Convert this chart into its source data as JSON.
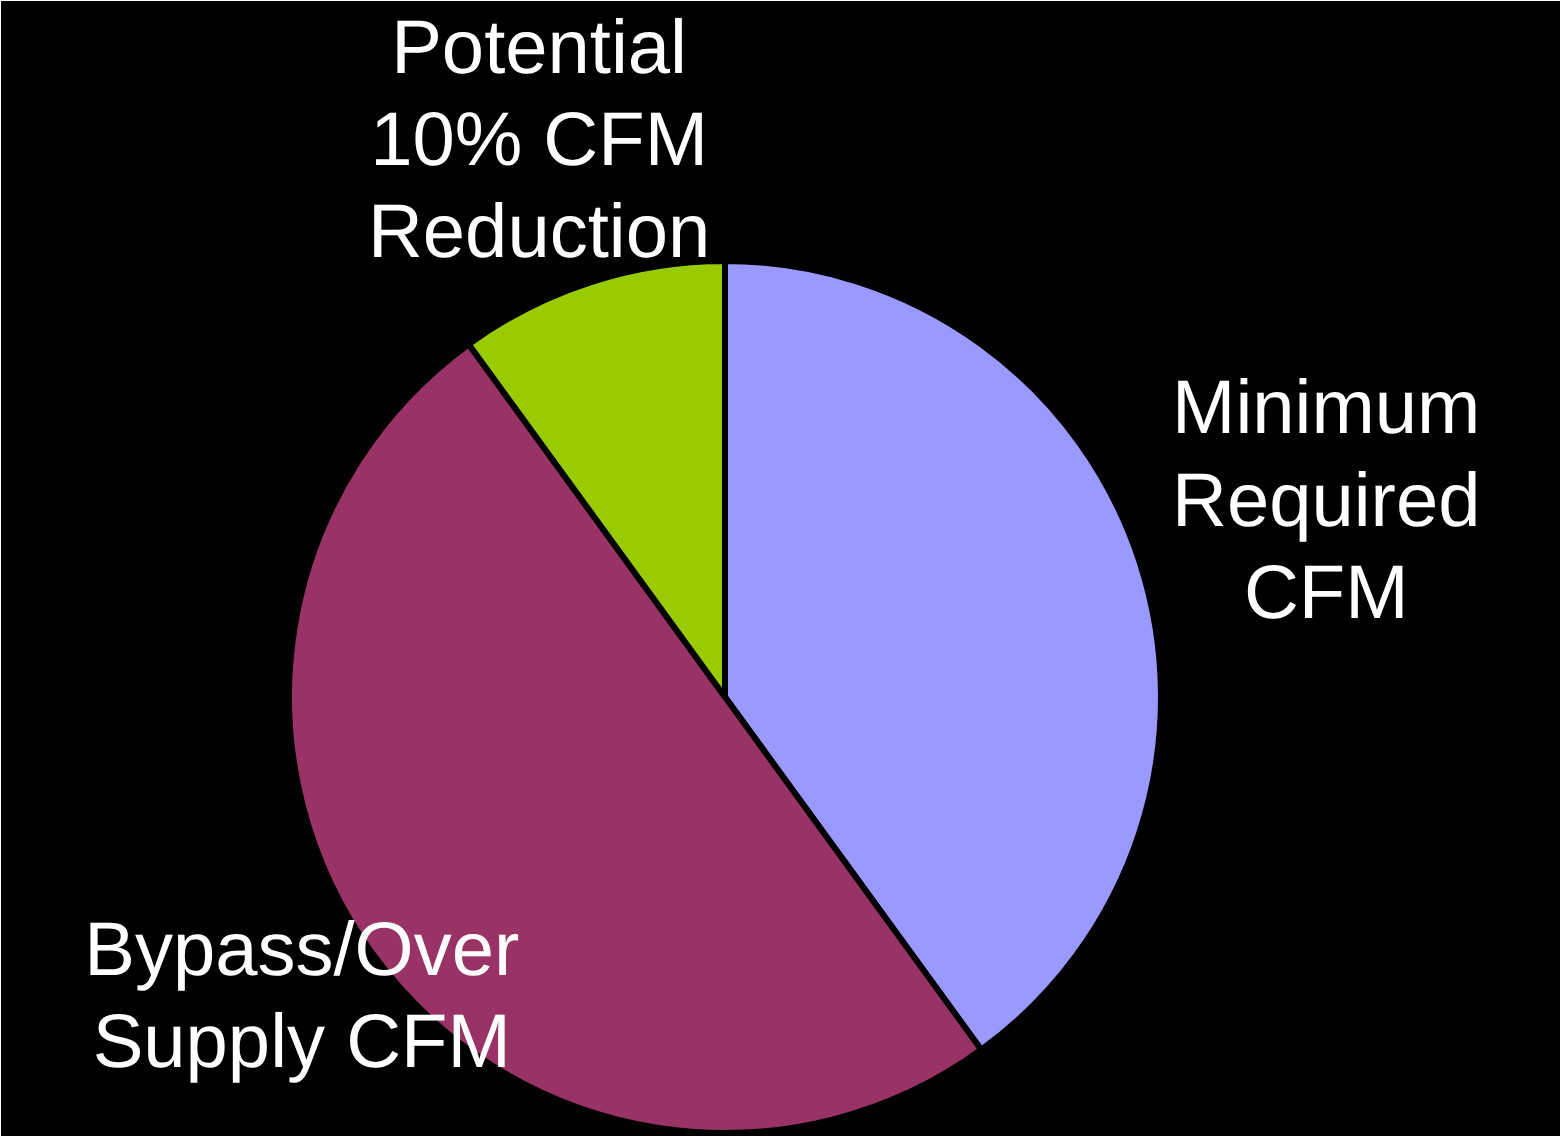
{
  "chart_data": {
    "type": "pie",
    "categories": [
      "Minimum Required CFM",
      "Bypass/Over Supply CFM",
      "Potential 10% CFM Reduction"
    ],
    "values": [
      40,
      50,
      10
    ],
    "colors": [
      "#9999ff",
      "#993366",
      "#99cc00"
    ]
  }
}
